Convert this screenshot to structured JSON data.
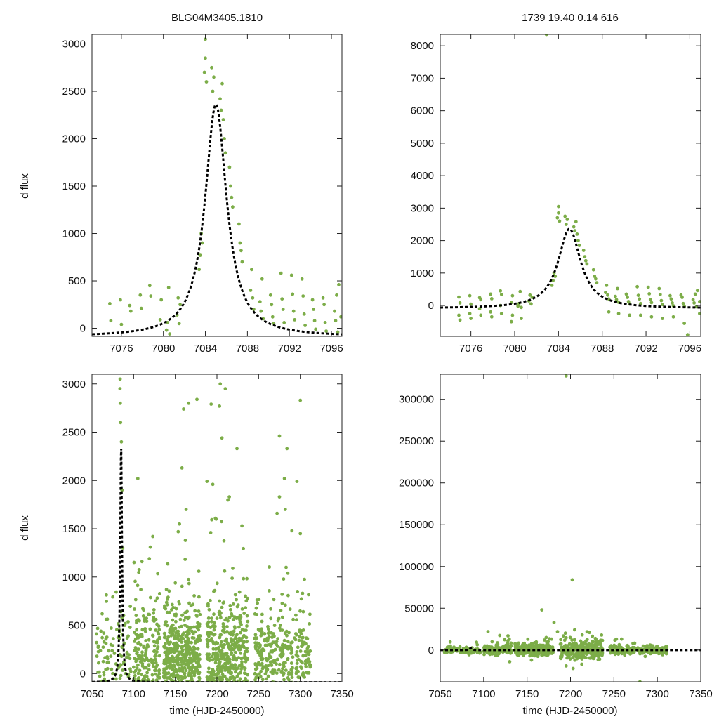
{
  "figure": {
    "title_left": "BLG04M3405.1810",
    "title_right": "1739  19.40  0.14  616",
    "xlabel": "time (HJD-2450000)",
    "ylabel": "d flux",
    "colors": {
      "points": "#7cad48",
      "fit": "#000000",
      "frame": "#222222",
      "text": "#111111"
    }
  },
  "chart_data": [
    {
      "id": "top-left",
      "type": "scatter",
      "title": "BLG04M3405.1810",
      "ylabel": "d flux",
      "xlabel": "",
      "xlim": [
        7073.2,
        7097.0
      ],
      "ylim": [
        -85,
        3100
      ],
      "xticks": [
        7076,
        7080,
        7084,
        7088,
        7092,
        7096
      ],
      "yticks": [
        0,
        500,
        1000,
        1500,
        2000,
        2500,
        3000
      ],
      "model": {
        "t0": 7085.0,
        "peak": 2360,
        "halfwidth": 1.25,
        "baseline": -90
      },
      "points": [
        [
          7074.9,
          260
        ],
        [
          7075.0,
          80
        ],
        [
          7075.9,
          300
        ],
        [
          7076.0,
          40
        ],
        [
          7076.8,
          240
        ],
        [
          7076.9,
          180
        ],
        [
          7077.8,
          350
        ],
        [
          7077.9,
          210
        ],
        [
          7078.7,
          450
        ],
        [
          7078.8,
          340
        ],
        [
          7079.7,
          90
        ],
        [
          7079.8,
          300
        ],
        [
          7080.3,
          -20
        ],
        [
          7080.4,
          60
        ],
        [
          7080.5,
          430
        ],
        [
          7080.6,
          -60
        ],
        [
          7081.3,
          140
        ],
        [
          7081.4,
          320
        ],
        [
          7081.5,
          50
        ],
        [
          7081.6,
          250
        ],
        [
          7083.4,
          620
        ],
        [
          7083.5,
          770
        ],
        [
          7083.6,
          1000
        ],
        [
          7083.7,
          900
        ],
        [
          7083.9,
          2700
        ],
        [
          7084.0,
          2850
        ],
        [
          7084.0,
          3050
        ],
        [
          7084.1,
          2600
        ],
        [
          7084.6,
          2750
        ],
        [
          7084.7,
          2500
        ],
        [
          7084.8,
          2650
        ],
        [
          7085.4,
          2420
        ],
        [
          7085.5,
          2300
        ],
        [
          7085.6,
          2580
        ],
        [
          7085.7,
          2200
        ],
        [
          7085.8,
          2000
        ],
        [
          7085.9,
          1850
        ],
        [
          7086.3,
          1700
        ],
        [
          7086.4,
          1500
        ],
        [
          7086.5,
          1380
        ],
        [
          7086.6,
          1280
        ],
        [
          7087.2,
          1100
        ],
        [
          7087.3,
          900
        ],
        [
          7087.4,
          820
        ],
        [
          7087.5,
          700
        ],
        [
          7088.3,
          400
        ],
        [
          7088.4,
          620
        ],
        [
          7088.5,
          320
        ],
        [
          7088.6,
          200
        ],
        [
          7089.2,
          280
        ],
        [
          7089.3,
          180
        ],
        [
          7089.4,
          520
        ],
        [
          7089.5,
          100
        ],
        [
          7090.2,
          350
        ],
        [
          7090.3,
          250
        ],
        [
          7090.4,
          120
        ],
        [
          7090.5,
          50
        ],
        [
          7091.2,
          580
        ],
        [
          7091.3,
          310
        ],
        [
          7091.4,
          200
        ],
        [
          7091.5,
          60
        ],
        [
          7092.2,
          560
        ],
        [
          7092.3,
          360
        ],
        [
          7092.4,
          180
        ],
        [
          7092.5,
          90
        ],
        [
          7093.2,
          520
        ],
        [
          7093.3,
          340
        ],
        [
          7093.4,
          150
        ],
        [
          7093.5,
          30
        ],
        [
          7094.2,
          300
        ],
        [
          7094.3,
          200
        ],
        [
          7094.4,
          80
        ],
        [
          7094.5,
          -10
        ],
        [
          7095.2,
          320
        ],
        [
          7095.3,
          250
        ],
        [
          7095.4,
          60
        ],
        [
          7095.5,
          -30
        ],
        [
          7096.3,
          180
        ],
        [
          7096.4,
          80
        ],
        [
          7096.5,
          350
        ],
        [
          7096.6,
          -40
        ],
        [
          7096.7,
          460
        ],
        [
          7096.9,
          120
        ]
      ]
    },
    {
      "id": "top-right",
      "type": "scatter",
      "title": "1739  19.40  0.14  616",
      "ylabel": "",
      "xlabel": "",
      "xlim": [
        7073.2,
        7097.0
      ],
      "ylim": [
        -950,
        8350
      ],
      "xticks": [
        7076,
        7080,
        7084,
        7088,
        7092,
        7096
      ],
      "yticks": [
        0,
        1000,
        2000,
        3000,
        4000,
        5000,
        6000,
        7000,
        8000
      ],
      "model": {
        "t0": 7085.0,
        "peak": 2360,
        "halfwidth": 1.25,
        "baseline": -90
      },
      "points": [
        [
          7074.9,
          260
        ],
        [
          7074.9,
          -300
        ],
        [
          7075.0,
          80
        ],
        [
          7075.0,
          -450
        ],
        [
          7075.9,
          300
        ],
        [
          7075.9,
          -250
        ],
        [
          7076.0,
          40
        ],
        [
          7076.0,
          -400
        ],
        [
          7076.8,
          240
        ],
        [
          7076.8,
          -100
        ],
        [
          7076.9,
          180
        ],
        [
          7076.9,
          -300
        ],
        [
          7077.8,
          350
        ],
        [
          7077.8,
          -200
        ],
        [
          7077.9,
          210
        ],
        [
          7077.9,
          -350
        ],
        [
          7078.7,
          450
        ],
        [
          7078.7,
          0
        ],
        [
          7078.8,
          340
        ],
        [
          7078.8,
          -250
        ],
        [
          7079.7,
          90
        ],
        [
          7079.7,
          -500
        ],
        [
          7079.8,
          300
        ],
        [
          7079.8,
          -300
        ],
        [
          7080.3,
          -20
        ],
        [
          7080.4,
          60
        ],
        [
          7080.5,
          430
        ],
        [
          7080.6,
          -60
        ],
        [
          7080.6,
          -400
        ],
        [
          7081.3,
          140
        ],
        [
          7081.4,
          320
        ],
        [
          7081.5,
          50
        ],
        [
          7081.6,
          250
        ],
        [
          7083.4,
          620
        ],
        [
          7083.5,
          770
        ],
        [
          7083.6,
          1000
        ],
        [
          7083.7,
          900
        ],
        [
          7082.9,
          8350
        ],
        [
          7083.9,
          2700
        ],
        [
          7084.0,
          2850
        ],
        [
          7084.0,
          3050
        ],
        [
          7084.1,
          2600
        ],
        [
          7084.6,
          2750
        ],
        [
          7084.7,
          2500
        ],
        [
          7084.8,
          2650
        ],
        [
          7085.4,
          2420
        ],
        [
          7085.5,
          2300
        ],
        [
          7085.6,
          2580
        ],
        [
          7085.7,
          2200
        ],
        [
          7085.8,
          2000
        ],
        [
          7085.9,
          1850
        ],
        [
          7086.3,
          1700
        ],
        [
          7086.4,
          1500
        ],
        [
          7086.5,
          1380
        ],
        [
          7086.6,
          1280
        ],
        [
          7087.2,
          1100
        ],
        [
          7087.3,
          900
        ],
        [
          7087.4,
          820
        ],
        [
          7087.5,
          700
        ],
        [
          7088.3,
          400
        ],
        [
          7088.4,
          620
        ],
        [
          7088.5,
          320
        ],
        [
          7088.6,
          200
        ],
        [
          7088.6,
          -200
        ],
        [
          7089.2,
          280
        ],
        [
          7089.3,
          180
        ],
        [
          7089.4,
          520
        ],
        [
          7089.5,
          100
        ],
        [
          7089.5,
          -250
        ],
        [
          7090.2,
          350
        ],
        [
          7090.3,
          250
        ],
        [
          7090.4,
          120
        ],
        [
          7090.5,
          50
        ],
        [
          7090.5,
          -300
        ],
        [
          7091.2,
          580
        ],
        [
          7091.3,
          310
        ],
        [
          7091.4,
          200
        ],
        [
          7091.5,
          60
        ],
        [
          7091.5,
          -300
        ],
        [
          7092.2,
          560
        ],
        [
          7092.3,
          360
        ],
        [
          7092.4,
          180
        ],
        [
          7092.5,
          90
        ],
        [
          7092.5,
          -350
        ],
        [
          7093.2,
          520
        ],
        [
          7093.3,
          340
        ],
        [
          7093.4,
          150
        ],
        [
          7093.5,
          30
        ],
        [
          7093.5,
          -400
        ],
        [
          7094.2,
          300
        ],
        [
          7094.3,
          200
        ],
        [
          7094.4,
          80
        ],
        [
          7094.5,
          -10
        ],
        [
          7094.5,
          -350
        ],
        [
          7095.2,
          320
        ],
        [
          7095.3,
          250
        ],
        [
          7095.4,
          60
        ],
        [
          7095.5,
          -30
        ],
        [
          7095.5,
          -550
        ],
        [
          7095.8,
          -900
        ],
        [
          7096.3,
          180
        ],
        [
          7096.4,
          80
        ],
        [
          7096.5,
          350
        ],
        [
          7096.6,
          -40
        ],
        [
          7096.7,
          460
        ],
        [
          7096.9,
          120
        ],
        [
          7096.9,
          -250
        ]
      ]
    },
    {
      "id": "bottom-left",
      "type": "scatter",
      "title": "",
      "ylabel": "d flux",
      "xlabel": "time (HJD-2450000)",
      "xlim": [
        7050,
        7350
      ],
      "ylim": [
        -85,
        3100
      ],
      "xticks": [
        7050,
        7100,
        7150,
        7200,
        7250,
        7300,
        7350
      ],
      "yticks": [
        0,
        500,
        1000,
        1500,
        2000,
        2500,
        3000
      ],
      "model": {
        "t0": 7085.0,
        "peak": 2360,
        "halfwidth": 1.25,
        "baseline": -90
      },
      "seasons": [
        {
          "start": 7055,
          "end": 7097,
          "n": 120,
          "spread": 260,
          "center": 100
        },
        {
          "start": 7100,
          "end": 7132,
          "n": 220,
          "spread": 260,
          "center": 120
        },
        {
          "start": 7136,
          "end": 7180,
          "n": 520,
          "spread": 230,
          "center": 150
        },
        {
          "start": 7188,
          "end": 7237,
          "n": 480,
          "spread": 280,
          "center": 140
        },
        {
          "start": 7245,
          "end": 7312,
          "n": 380,
          "spread": 260,
          "center": 120
        }
      ],
      "outliers": [
        [
          7083.6,
          2950
        ],
        [
          7083.8,
          3050
        ],
        [
          7084.0,
          2800
        ],
        [
          7084.3,
          2600
        ],
        [
          7085.3,
          2400
        ],
        [
          7086.0,
          1900
        ],
        [
          7087.0,
          1300
        ],
        [
          7088.0,
          600
        ],
        [
          7105,
          2020
        ],
        [
          7123,
          1420
        ],
        [
          7120,
          1310
        ],
        [
          7110,
          1160
        ],
        [
          7160,
          2740
        ],
        [
          7166,
          2800
        ],
        [
          7158,
          2130
        ],
        [
          7163,
          1700
        ],
        [
          7155,
          1550
        ],
        [
          7176,
          2840
        ],
        [
          7188,
          1990
        ],
        [
          7193,
          2790
        ],
        [
          7195,
          1960
        ],
        [
          7203,
          2770
        ],
        [
          7204,
          3000
        ],
        [
          7210,
          2950
        ],
        [
          7206,
          2440
        ],
        [
          7199,
          1600
        ],
        [
          7224,
          2330
        ],
        [
          7230,
          1530
        ],
        [
          7219,
          1090
        ],
        [
          7275,
          2460
        ],
        [
          7284,
          2330
        ],
        [
          7281,
          2020
        ],
        [
          7296,
          1990
        ],
        [
          7300,
          2830
        ],
        [
          7275,
          1830
        ],
        [
          7282,
          1700
        ],
        [
          7290,
          1480
        ],
        [
          7300,
          1450
        ],
        [
          7283,
          1100
        ],
        [
          7285,
          1040
        ]
      ]
    },
    {
      "id": "bottom-right",
      "type": "scatter",
      "title": "",
      "ylabel": "",
      "xlabel": "time (HJD-2450000)",
      "xlim": [
        7050,
        7350
      ],
      "ylim": [
        -38000,
        330000
      ],
      "xticks": [
        7050,
        7100,
        7150,
        7200,
        7250,
        7300,
        7350
      ],
      "yticks": [
        0,
        50000,
        100000,
        150000,
        200000,
        250000,
        300000
      ],
      "model": {
        "t0": 7085.0,
        "peak": 2360,
        "halfwidth": 1.25,
        "baseline": -90
      },
      "seasons": [
        {
          "start": 7055,
          "end": 7097,
          "n": 90,
          "spread": 2000,
          "center": 0
        },
        {
          "start": 7100,
          "end": 7132,
          "n": 150,
          "spread": 2500,
          "center": 0
        },
        {
          "start": 7136,
          "end": 7180,
          "n": 260,
          "spread": 3000,
          "center": 0
        },
        {
          "start": 7188,
          "end": 7237,
          "n": 300,
          "spread": 6000,
          "center": 0
        },
        {
          "start": 7245,
          "end": 7312,
          "n": 230,
          "spread": 2500,
          "center": 0
        }
      ],
      "outliers": [
        [
          7195,
          328000
        ],
        [
          7202,
          84000
        ],
        [
          7167,
          48000
        ],
        [
          7172,
          15000
        ],
        [
          7181,
          33000
        ],
        [
          7185,
          22000
        ],
        [
          7105,
          22000
        ],
        [
          7128,
          17000
        ],
        [
          7170,
          12000
        ],
        [
          7195,
          -19000
        ],
        [
          7203,
          -22000
        ],
        [
          7213,
          -17000
        ],
        [
          7130,
          -14000
        ],
        [
          7280,
          -38000
        ],
        [
          7272,
          8000
        ],
        [
          7155,
          -12000
        ]
      ]
    }
  ]
}
